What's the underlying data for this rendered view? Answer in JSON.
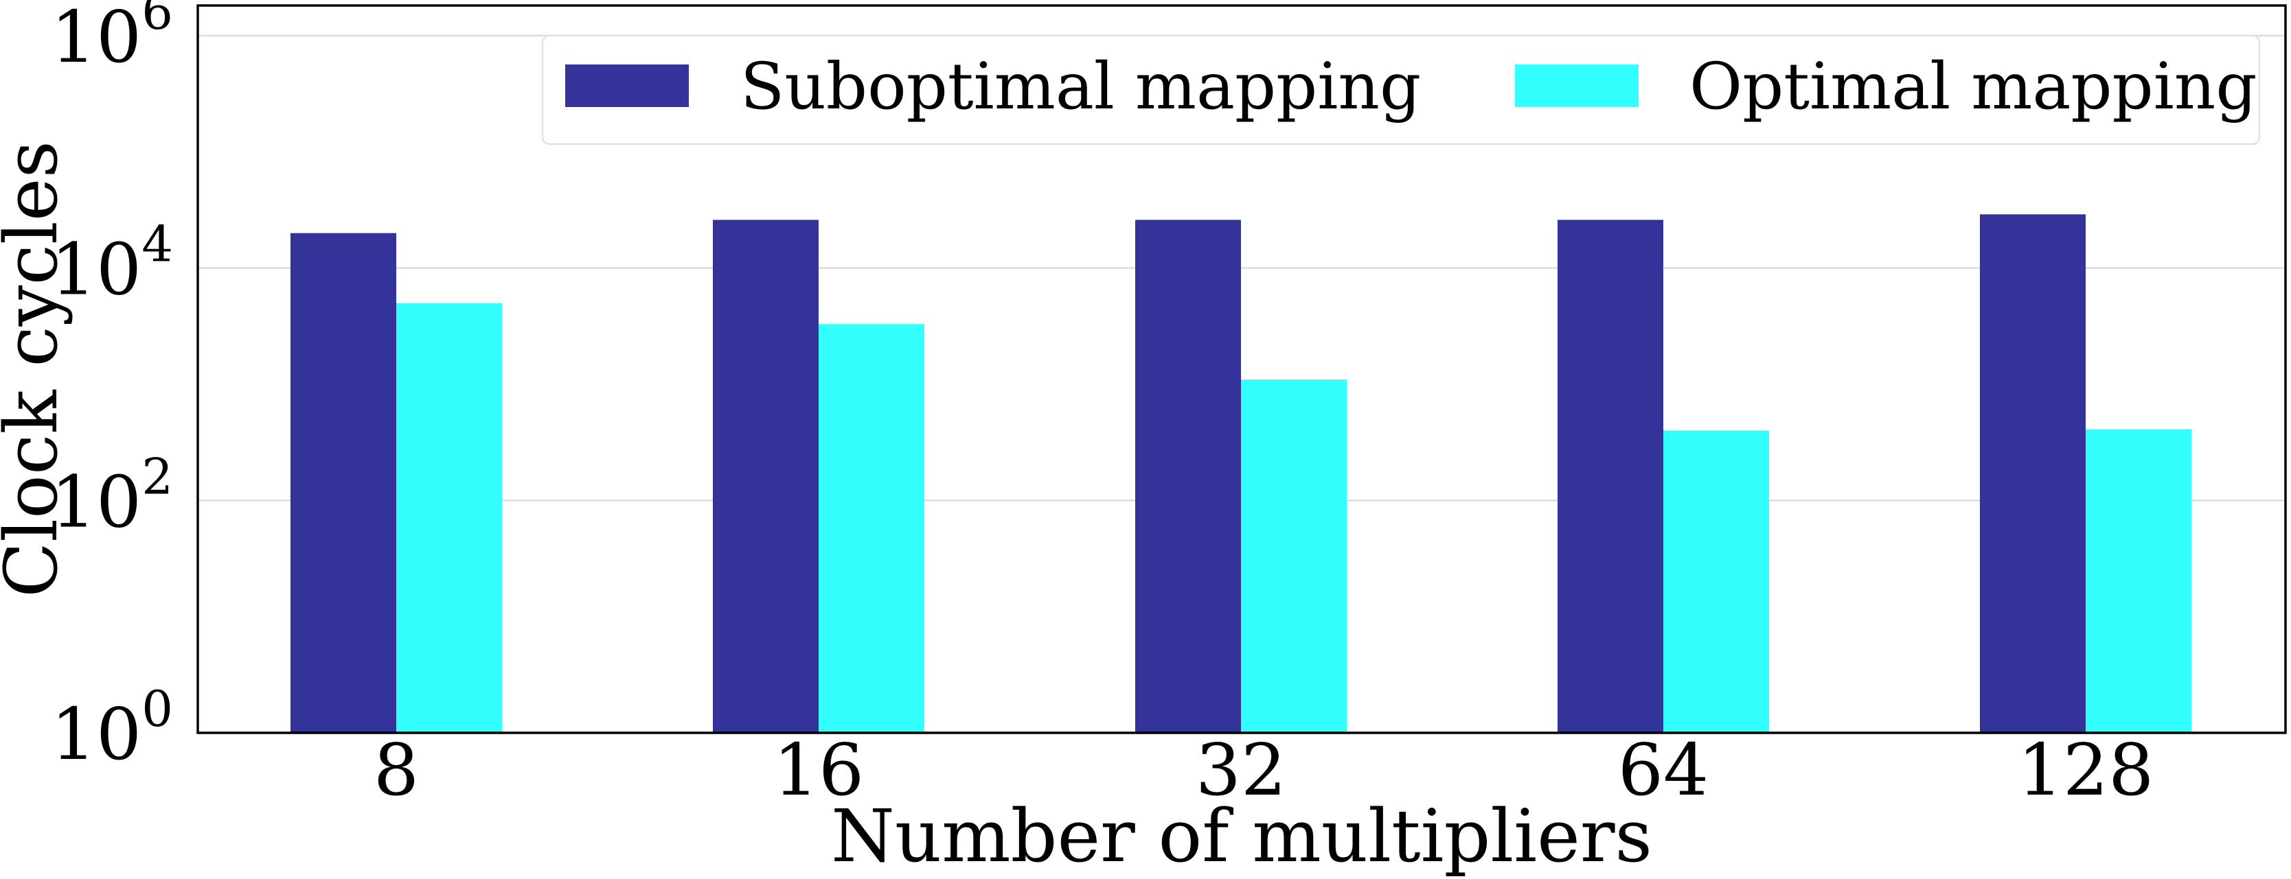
{
  "chart_data": {
    "type": "bar",
    "categories": [
      "8",
      "16",
      "32",
      "64",
      "128"
    ],
    "series": [
      {
        "name": "Suboptimal mapping",
        "values": [
          20000,
          26000,
          26000,
          26000,
          29000
        ],
        "color": "#333399"
      },
      {
        "name": "Optimal mapping",
        "values": [
          5000,
          3300,
          1100,
          400,
          410
        ],
        "color": "#33ffff"
      }
    ],
    "title": "",
    "xlabel": "Number of multipliers",
    "ylabel": "Clock cycles",
    "y_scale": "log",
    "ylim": [
      1,
      1000000
    ],
    "y_ticks": [
      {
        "value": 1,
        "base": "10",
        "exp": "0"
      },
      {
        "value": 100,
        "base": "10",
        "exp": "2"
      },
      {
        "value": 10000,
        "base": "10",
        "exp": "4"
      },
      {
        "value": 1000000,
        "base": "10",
        "exp": "6"
      }
    ],
    "grid": "horizontal",
    "legend_position": "top-right"
  }
}
